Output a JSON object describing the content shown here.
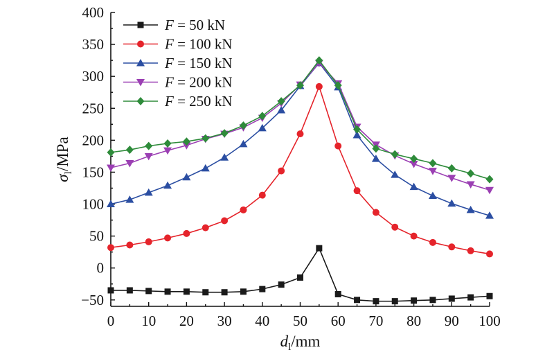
{
  "chart_data": {
    "type": "line",
    "title": "",
    "xlabel": {
      "symbol": "d",
      "subscript": "l",
      "unit": "/mm"
    },
    "ylabel": {
      "symbol": "σ",
      "subscript": "l",
      "unit": "/MPa"
    },
    "xlim": [
      0,
      100
    ],
    "ylim": [
      -60,
      400
    ],
    "xticks": [
      0,
      10,
      20,
      30,
      40,
      50,
      60,
      70,
      80,
      90,
      100
    ],
    "yticks": [
      -50,
      0,
      50,
      100,
      150,
      200,
      250,
      300,
      350,
      400
    ],
    "ytick_labels": [
      "−50",
      "0",
      "50",
      "100",
      "150",
      "200",
      "250",
      "300",
      "350",
      "400"
    ],
    "grid": false,
    "legend_position": "top-left",
    "x": [
      0,
      5,
      10,
      15,
      20,
      25,
      30,
      35,
      40,
      45,
      50,
      55,
      60,
      65,
      70,
      75,
      80,
      85,
      90,
      95,
      100
    ],
    "series": [
      {
        "name": "F = 50 kN",
        "legend_var": "F",
        "legend_rest": " = 50 kN",
        "color": "#1a1a1a",
        "marker": "square",
        "values": [
          -35,
          -35,
          -36,
          -37,
          -37,
          -38,
          -38,
          -37,
          -33,
          -26,
          -15,
          31,
          -41,
          -50,
          -52,
          -52,
          -51,
          -50,
          -48,
          -46,
          -44
        ]
      },
      {
        "name": "F = 100 kN",
        "legend_var": "F",
        "legend_rest": " = 100 kN",
        "color": "#e5242b",
        "marker": "circle",
        "values": [
          32,
          36,
          41,
          47,
          54,
          63,
          74,
          91,
          114,
          152,
          210,
          284,
          191,
          121,
          87,
          64,
          50,
          40,
          33,
          27,
          22
        ]
      },
      {
        "name": "F = 150 kN",
        "legend_var": "F",
        "legend_rest": " = 150 kN",
        "color": "#2b4ea2",
        "marker": "triangle-up",
        "values": [
          100,
          107,
          118,
          129,
          142,
          156,
          173,
          194,
          219,
          247,
          285,
          321,
          283,
          208,
          171,
          146,
          127,
          113,
          101,
          91,
          82
        ]
      },
      {
        "name": "F = 200 kN",
        "legend_var": "F",
        "legend_rest": " = 200 kN",
        "color": "#9b3fb3",
        "marker": "triangle-down",
        "values": [
          157,
          164,
          175,
          184,
          192,
          202,
          210,
          220,
          235,
          258,
          287,
          321,
          289,
          221,
          193,
          176,
          163,
          152,
          141,
          131,
          122
        ]
      },
      {
        "name": "F = 250 kN",
        "legend_var": "F",
        "legend_rest": " = 250 kN",
        "color": "#2e8b3a",
        "marker": "diamond",
        "values": [
          181,
          185,
          191,
          195,
          198,
          203,
          211,
          223,
          238,
          261,
          286,
          325,
          286,
          217,
          187,
          178,
          171,
          164,
          156,
          148,
          139
        ]
      }
    ]
  }
}
